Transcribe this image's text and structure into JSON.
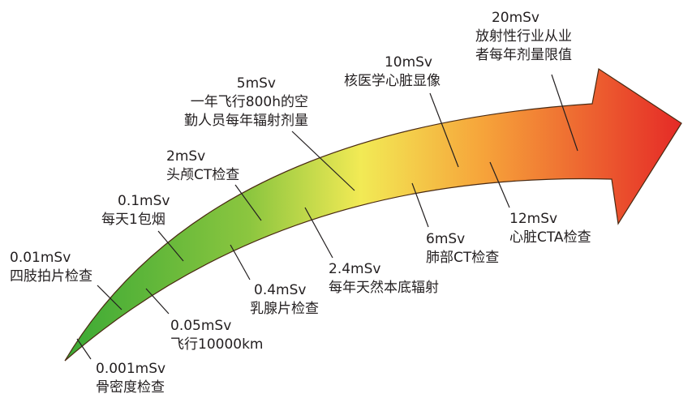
{
  "nodes": [
    {
      "dose": "0.001mSv",
      "label": [
        "骨密度检查"
      ]
    },
    {
      "dose": "0.01mSv",
      "label": [
        "四肢拍片检查"
      ]
    },
    {
      "dose": "0.05mSv",
      "label": [
        "飞行10000km"
      ]
    },
    {
      "dose": "0.1mSv",
      "label": [
        "每天1包烟"
      ]
    },
    {
      "dose": "0.4mSv",
      "label": [
        "乳腺片检查"
      ]
    },
    {
      "dose": "2mSv",
      "label": [
        "头颅CT检查"
      ]
    },
    {
      "dose": "2.4mSv",
      "label": [
        "每年天然本底辐射"
      ]
    },
    {
      "dose": "5mSv",
      "label": [
        "一年飞行800h的空",
        "勤人员每年辐射剂量"
      ]
    },
    {
      "dose": "6mSv",
      "label": [
        "肺部CT检查"
      ]
    },
    {
      "dose": "10mSv",
      "label": [
        "核医学心脏显像"
      ]
    },
    {
      "dose": "12mSv",
      "label": [
        "心脏CTA检查"
      ]
    },
    {
      "dose": "20mSv",
      "label": [
        "放射性行业从业",
        "者每年剂量限值"
      ]
    }
  ]
}
